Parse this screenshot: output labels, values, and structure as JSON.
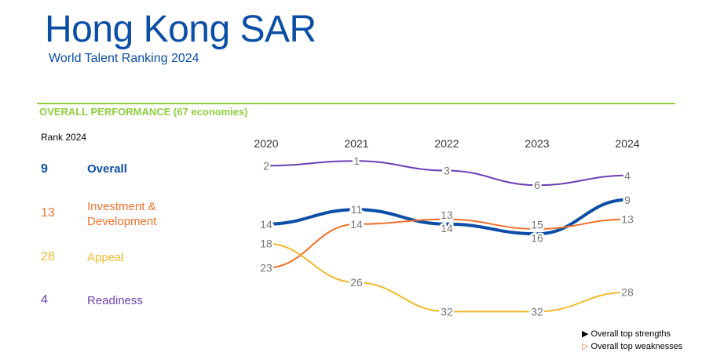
{
  "header": {
    "title": "Hong Kong SAR",
    "subtitle": "World Talent Ranking 2024"
  },
  "section": {
    "title": "OVERALL PERFORMANCE  (67 economies)",
    "rank_header": "Rank 2024"
  },
  "factors": [
    {
      "rank": "9",
      "name": "Overall",
      "color": "#0a4ea6",
      "bold": true
    },
    {
      "rank": "13",
      "name_line1": "Investment &",
      "name_line2": "Development",
      "color": "#f26f2a"
    },
    {
      "rank": "28",
      "name": "Appeal",
      "color": "#f0b92c"
    },
    {
      "rank": "4",
      "name": "Readiness",
      "color": "#6c3fb5"
    }
  ],
  "legend": {
    "strengths": "Overall top strengths",
    "weaknesses": "Overall top weaknesses"
  },
  "chart_data": {
    "type": "line",
    "x": [
      "2020",
      "2021",
      "2022",
      "2023",
      "2024"
    ],
    "y_axis": "rank (inverted)",
    "series": [
      {
        "name": "Readiness",
        "color": "#6c3fb5",
        "width": 2,
        "values": [
          2,
          1,
          3,
          6,
          4
        ]
      },
      {
        "name": "Overall",
        "color": "#0a4ea6",
        "width": 4,
        "values": [
          14,
          11,
          14,
          16,
          9
        ]
      },
      {
        "name": "Investment & Development",
        "color": "#f26f2a",
        "width": 2,
        "values": [
          23,
          14,
          13,
          15,
          13
        ]
      },
      {
        "name": "Appeal",
        "color": "#f0b92c",
        "width": 2,
        "values": [
          18,
          26,
          32,
          32,
          28
        ]
      }
    ]
  }
}
